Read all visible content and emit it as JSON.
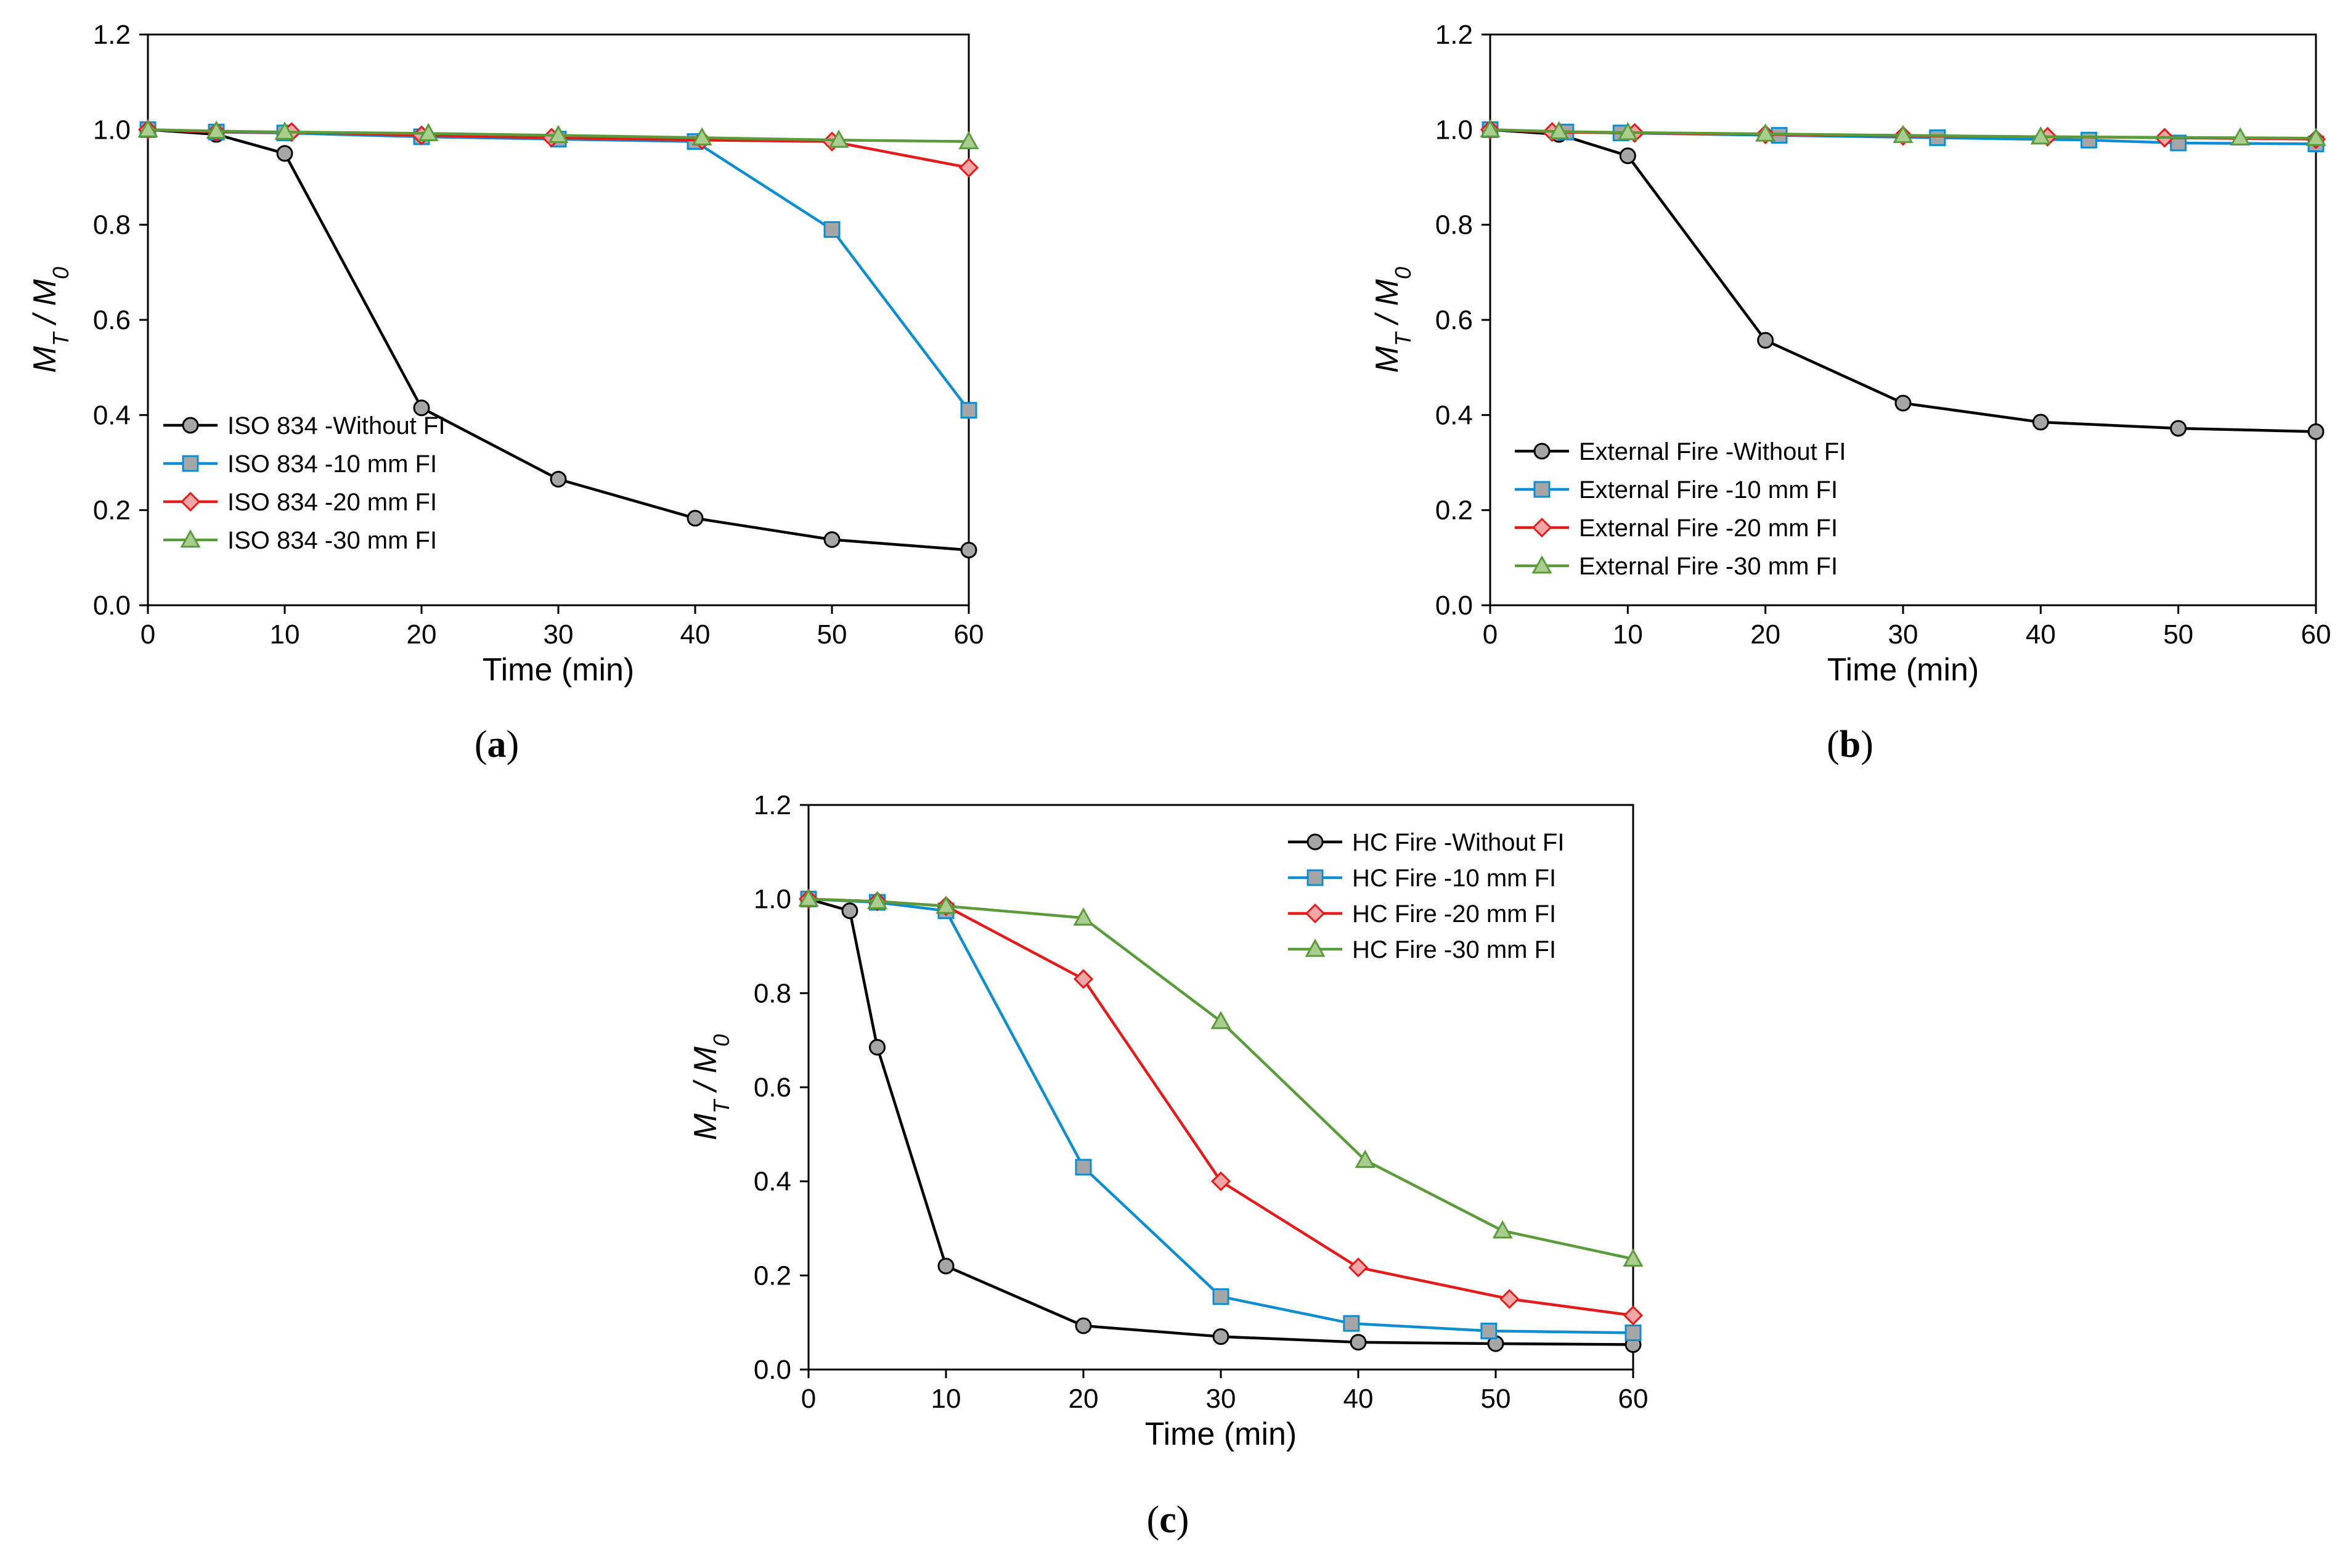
{
  "chart_data": [
    {
      "type": "line",
      "panel_label": "a",
      "xlabel": "Time (min)",
      "ylabel_main": "M",
      "ylabel_sub1": "T",
      "ylabel_sub2": "0",
      "xlim": [
        0,
        60
      ],
      "ylim": [
        0,
        1.2
      ],
      "xticks": [
        "0",
        "10",
        "20",
        "30",
        "40",
        "50",
        "60"
      ],
      "yticks": [
        "0.0",
        "0.2",
        "0.4",
        "0.6",
        "0.8",
        "1.0",
        "1.2"
      ],
      "legend_position": "bottom-left",
      "series": [
        {
          "name": "ISO 834 -Without FI",
          "color": "#000000",
          "marker": "circle",
          "marker_fill": "#a6a6a6",
          "x": [
            0,
            5,
            10,
            20,
            30,
            40,
            50,
            60
          ],
          "y": [
            1.0,
            0.99,
            0.95,
            0.415,
            0.265,
            0.183,
            0.138,
            0.116
          ]
        },
        {
          "name": "ISO 834 -10 mm FI",
          "color": "#0e8ed1",
          "marker": "square",
          "marker_fill": "#a6a6a6",
          "x": [
            0,
            5,
            10,
            20,
            30,
            40,
            50,
            60
          ],
          "y": [
            1.0,
            0.995,
            0.993,
            0.985,
            0.98,
            0.975,
            0.79,
            0.41
          ]
        },
        {
          "name": "ISO 834 -20 mm FI",
          "color": "#e41b1b",
          "marker": "diamond",
          "marker_fill": "#f4a6a6",
          "x": [
            0,
            5,
            10.5,
            20,
            29.5,
            40.5,
            50,
            60
          ],
          "y": [
            1.0,
            0.995,
            0.995,
            0.988,
            0.983,
            0.978,
            0.975,
            0.92
          ]
        },
        {
          "name": "ISO 834 -30 mm FI",
          "color": "#5a9b3a",
          "marker": "triangle",
          "marker_fill": "#a9cc8f",
          "x": [
            0,
            5,
            10,
            20.5,
            30,
            40.5,
            50.5,
            60
          ],
          "y": [
            1.0,
            0.997,
            0.995,
            0.992,
            0.988,
            0.983,
            0.978,
            0.975
          ]
        }
      ]
    },
    {
      "type": "line",
      "panel_label": "b",
      "xlabel": "Time (min)",
      "ylabel_main": "M",
      "ylabel_sub1": "T",
      "ylabel_sub2": "0",
      "xlim": [
        0,
        60
      ],
      "ylim": [
        0,
        1.2
      ],
      "xticks": [
        "0",
        "10",
        "20",
        "30",
        "40",
        "50",
        "60"
      ],
      "yticks": [
        "0.0",
        "0.2",
        "0.4",
        "0.6",
        "0.8",
        "1.0",
        "1.2"
      ],
      "legend_position": "bottom-left",
      "series": [
        {
          "name": "External Fire -Without FI",
          "color": "#000000",
          "marker": "circle",
          "marker_fill": "#a6a6a6",
          "x": [
            0,
            5,
            10,
            20,
            30,
            40,
            50,
            60
          ],
          "y": [
            1.0,
            0.99,
            0.945,
            0.557,
            0.425,
            0.385,
            0.372,
            0.365
          ]
        },
        {
          "name": "External Fire -10 mm FI",
          "color": "#0e8ed1",
          "marker": "square",
          "marker_fill": "#a6a6a6",
          "x": [
            0,
            5.5,
            9.5,
            21,
            32.5,
            43.5,
            50,
            60
          ],
          "y": [
            1.0,
            0.995,
            0.993,
            0.988,
            0.983,
            0.978,
            0.972,
            0.97
          ]
        },
        {
          "name": "External Fire -20 mm FI",
          "color": "#e41b1b",
          "marker": "diamond",
          "marker_fill": "#f4a6a6",
          "x": [
            0,
            4.5,
            10.5,
            20,
            30,
            40.5,
            49,
            60
          ],
          "y": [
            1.0,
            0.995,
            0.993,
            0.99,
            0.987,
            0.985,
            0.983,
            0.98
          ]
        },
        {
          "name": "External Fire -30 mm FI",
          "color": "#5a9b3a",
          "marker": "triangle",
          "marker_fill": "#a9cc8f",
          "x": [
            0,
            5,
            10,
            20,
            30,
            40,
            54.5,
            60
          ],
          "y": [
            1.0,
            0.996,
            0.994,
            0.991,
            0.988,
            0.985,
            0.983,
            0.982
          ]
        }
      ]
    },
    {
      "type": "line",
      "panel_label": "c",
      "xlabel": "Time (min)",
      "ylabel_main": "M",
      "ylabel_sub1": "T",
      "ylabel_sub2": "0",
      "xlim": [
        0,
        60
      ],
      "ylim": [
        0,
        1.2
      ],
      "xticks": [
        "0",
        "10",
        "20",
        "30",
        "40",
        "50",
        "60"
      ],
      "yticks": [
        "0.0",
        "0.2",
        "0.4",
        "0.6",
        "0.8",
        "1.0",
        "1.2"
      ],
      "legend_position": "top-right",
      "series": [
        {
          "name": "HC Fire -Without FI",
          "color": "#000000",
          "marker": "circle",
          "marker_fill": "#a6a6a6",
          "x": [
            0,
            3,
            5,
            10,
            20,
            30,
            40,
            50,
            60
          ],
          "y": [
            1.0,
            0.975,
            0.685,
            0.22,
            0.093,
            0.07,
            0.058,
            0.055,
            0.053
          ]
        },
        {
          "name": "HC Fire -10 mm FI",
          "color": "#0e8ed1",
          "marker": "square",
          "marker_fill": "#a6a6a6",
          "x": [
            0,
            5,
            10,
            20,
            30,
            39.5,
            49.5,
            60
          ],
          "y": [
            1.0,
            0.993,
            0.975,
            0.43,
            0.155,
            0.098,
            0.082,
            0.078
          ]
        },
        {
          "name": "HC Fire -20 mm FI",
          "color": "#e41b1b",
          "marker": "diamond",
          "marker_fill": "#f4a6a6",
          "x": [
            0,
            5,
            10,
            20,
            30,
            40,
            51,
            60
          ],
          "y": [
            1.0,
            0.995,
            0.985,
            0.83,
            0.4,
            0.217,
            0.15,
            0.115
          ]
        },
        {
          "name": "HC Fire -30 mm FI",
          "color": "#5a9b3a",
          "marker": "triangle",
          "marker_fill": "#a9cc8f",
          "x": [
            0,
            5,
            10,
            20,
            30,
            40.5,
            50.5,
            60
          ],
          "y": [
            1.0,
            0.995,
            0.985,
            0.96,
            0.74,
            0.445,
            0.295,
            0.235
          ]
        }
      ]
    }
  ]
}
